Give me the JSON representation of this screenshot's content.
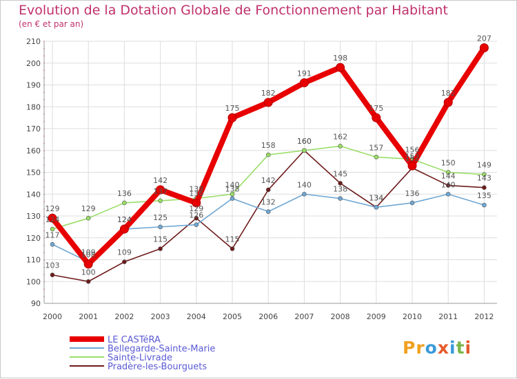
{
  "title": "Evolution de la Dotation Globale de Fonctionnement par Habitant",
  "subtitle": "(en € et par an)",
  "logo": {
    "text": "Proxiti",
    "letters": [
      {
        "ch": "Pr",
        "color": "#f0a020"
      },
      {
        "ch": "o",
        "color": "#3a9ad9"
      },
      {
        "ch": "x",
        "color": "#e55a2b"
      },
      {
        "ch": "i",
        "color": "#3a9ad9"
      },
      {
        "ch": "t",
        "color": "#7ab648"
      },
      {
        "ch": "i",
        "color": "#e55a2b"
      }
    ]
  },
  "chart_data": {
    "type": "line",
    "title": "Evolution de la Dotation Globale de Fonctionnement par Habitant",
    "subtitle": "(en € et par an)",
    "xlabel": "",
    "ylabel": "",
    "categories": [
      "2000",
      "2001",
      "2002",
      "2003",
      "2004",
      "2005",
      "2006",
      "2007",
      "2008",
      "2009",
      "2010",
      "2011",
      "2012"
    ],
    "ylim": [
      90,
      210
    ],
    "yticks": [
      90,
      100,
      110,
      120,
      130,
      140,
      150,
      160,
      170,
      180,
      190,
      200,
      210
    ],
    "grid": true,
    "legend_position": "bottom-left",
    "series": [
      {
        "name": "Pradère-les-Bourguets",
        "color": "#6e1a1a",
        "values": [
          103,
          100,
          109,
          115,
          129,
          115,
          142,
          160,
          145,
          134,
          152,
          144,
          143
        ],
        "labels": [
          "103",
          "100",
          "109",
          "115",
          "129",
          "115",
          "142",
          "160",
          "145",
          "134",
          "152",
          "144",
          "143"
        ]
      },
      {
        "name": "Sainte-Livrade",
        "color": "#99dd66",
        "values": [
          124,
          129,
          136,
          137,
          138,
          140,
          158,
          160,
          162,
          157,
          156,
          150,
          149
        ],
        "labels": [
          "124",
          "129",
          "136",
          "137",
          "138",
          "140",
          "158",
          "160",
          "162",
          "157",
          "156",
          "150",
          "149"
        ]
      },
      {
        "name": "Bellegarde-Sainte-Marie",
        "color": "#6fa7d3",
        "values": [
          117,
          109,
          124,
          125,
          126,
          138,
          132,
          140,
          138,
          134,
          136,
          140,
          135
        ],
        "labels": [
          "117",
          "109",
          "124",
          "125",
          "126",
          "138",
          "132",
          "140",
          "138",
          "134",
          "136",
          "140",
          "135"
        ]
      },
      {
        "name": "LE CASTéRA",
        "color": "#e80000",
        "values": [
          129,
          108,
          124,
          142,
          136,
          175,
          182,
          191,
          198,
          175,
          153,
          182,
          207
        ],
        "labels": [
          "129",
          "108",
          "124",
          "142",
          "136",
          "175",
          "182",
          "191",
          "198",
          "175",
          "153",
          "182",
          "207"
        ]
      }
    ],
    "legend": [
      "LE CASTéRA",
      "Bellegarde-Sainte-Marie",
      "Sainte-Livrade",
      "Pradère-les-Bourguets"
    ]
  }
}
